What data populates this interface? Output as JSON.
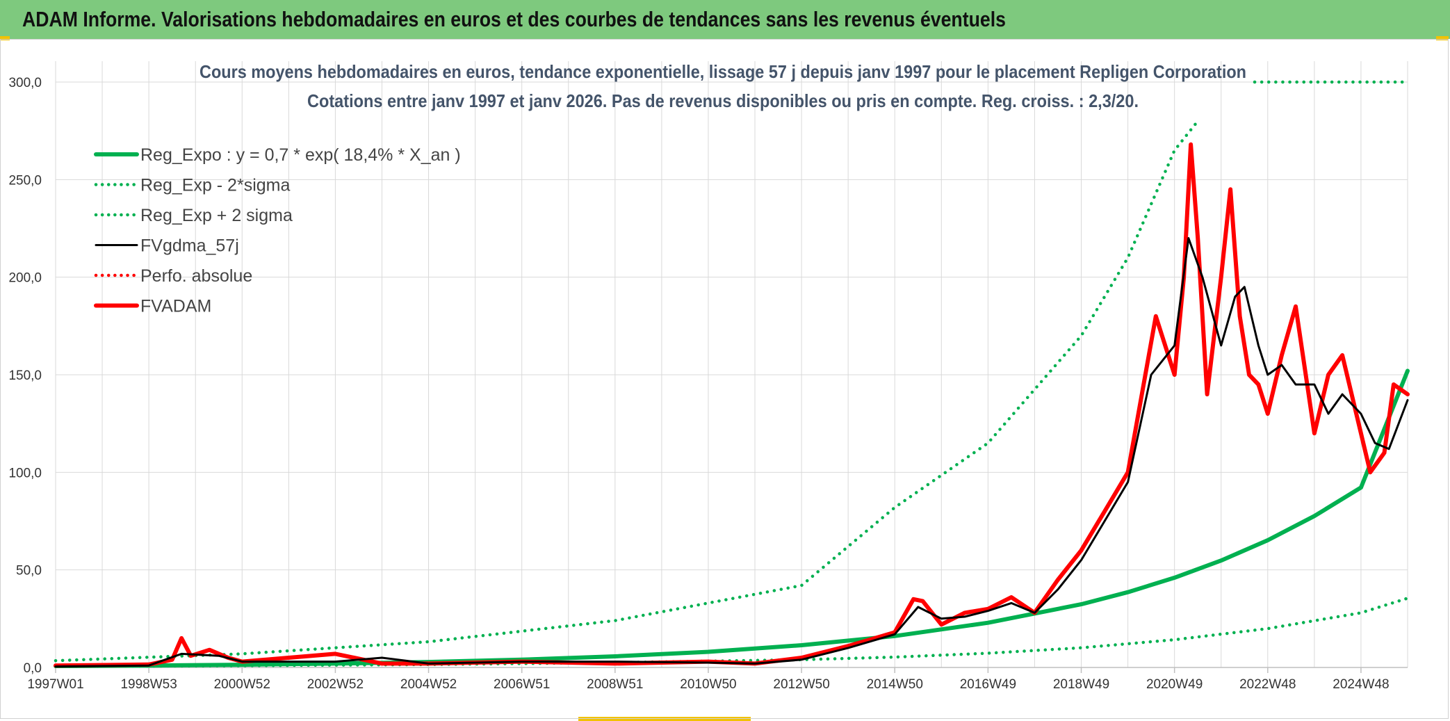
{
  "header": {
    "title": "ADAM Informe. Valorisations hebdomadaires en euros et des courbes de tendances sans les revenus éventuels"
  },
  "colors": {
    "header_bg": "#7ec97e",
    "accent": "#f2c200",
    "green": "#00b050",
    "red": "#ff0000",
    "black": "#000000",
    "grid": "#d9d9d9"
  },
  "chart_data": {
    "type": "line",
    "title": "Cours moyens hebdomadaires en euros, tendance exponentielle, lissage 57 j depuis janv 1997 pour le placement Repligen Corporation",
    "subtitle": "Cotations entre janv 1997 et janv 2026. Pas de revenus disponibles ou pris en compte. Reg. croiss. : 2,3/20.",
    "xlabel": "",
    "ylabel": "",
    "xlim": [
      1997.0,
      2026.0
    ],
    "ylim": [
      0,
      300
    ],
    "y_ticks": [
      "0,0",
      "50,0",
      "100,0",
      "150,0",
      "200,0",
      "250,0",
      "300,0"
    ],
    "x_ticks": [
      {
        "label": "1997W01",
        "x": 1997.0
      },
      {
        "label": "1998W53",
        "x": 1999.0
      },
      {
        "label": "2000W52",
        "x": 2001.0
      },
      {
        "label": "2002W52",
        "x": 2003.0
      },
      {
        "label": "2004W52",
        "x": 2005.0
      },
      {
        "label": "2006W51",
        "x": 2007.0
      },
      {
        "label": "2008W51",
        "x": 2009.0
      },
      {
        "label": "2010W50",
        "x": 2011.0
      },
      {
        "label": "2012W50",
        "x": 2013.0
      },
      {
        "label": "2014W50",
        "x": 2015.0
      },
      {
        "label": "2016W49",
        "x": 2017.0
      },
      {
        "label": "2018W49",
        "x": 2019.0
      },
      {
        "label": "2020W49",
        "x": 2021.0
      },
      {
        "label": "2022W48",
        "x": 2023.0
      },
      {
        "label": "2024W48",
        "x": 2025.0
      }
    ],
    "legend": [
      {
        "label": "Reg_Expo : y = 0,7 * exp( 18,4% *  X_an )",
        "color": "#00b050",
        "style": "solid-thick"
      },
      {
        "label": "Reg_Exp - 2*sigma",
        "color": "#00b050",
        "style": "dotted"
      },
      {
        "label": "Reg_Exp + 2 sigma",
        "color": "#00b050",
        "style": "dotted"
      },
      {
        "label": "FVgdma_57j",
        "color": "#000000",
        "style": "solid"
      },
      {
        "label": "Perfo. absolue",
        "color": "#ff0000",
        "style": "dotted"
      },
      {
        "label": "FVADAM",
        "color": "#ff0000",
        "style": "solid-thick"
      }
    ],
    "series": [
      {
        "name": "Reg_Expo : y = 0,7 * exp( 18,4% *  X_an )",
        "x": [
          1997,
          1999,
          2001,
          2003,
          2005,
          2007,
          2009,
          2011,
          2013,
          2015,
          2017,
          2019,
          2020,
          2021,
          2022,
          2023,
          2024,
          2025,
          2026
        ],
        "y": [
          0.7,
          1.0,
          1.4,
          2.0,
          2.8,
          4.0,
          5.7,
          8.0,
          11.4,
          16.1,
          22.9,
          32.4,
          38.6,
          46.0,
          54.8,
          65.2,
          77.6,
          92.2,
          152.0
        ]
      },
      {
        "name": "Reg_Exp - 2*sigma",
        "x": [
          1997,
          2001,
          2005,
          2009,
          2013,
          2015,
          2017,
          2019,
          2021,
          2023,
          2025,
          2026
        ],
        "y": [
          0.5,
          0.9,
          1.5,
          2.5,
          4.0,
          5.3,
          7.3,
          10.1,
          14.2,
          19.9,
          28.0,
          35.5
        ]
      },
      {
        "name": "Reg_Exp + 2 sigma",
        "x": [
          1997,
          2001,
          2005,
          2009,
          2013,
          2015,
          2017,
          2019,
          2020,
          2021,
          2021.5
        ],
        "y": [
          3.5,
          7.0,
          13.2,
          24.0,
          42.0,
          82.0,
          115.0,
          170.0,
          210.0,
          265.0,
          280.0
        ],
        "note": "continues beyond 300 (shown at top right)"
      },
      {
        "name": "FVgdma_57j",
        "x": [
          1997,
          1999,
          1999.7,
          2000.5,
          2001,
          2003,
          2004,
          2005,
          2007,
          2009,
          2011,
          2012,
          2013,
          2014,
          2015,
          2015.5,
          2016,
          2016.5,
          2017,
          2017.5,
          2018,
          2018.5,
          2019,
          2019.5,
          2020,
          2020.5,
          2021,
          2021.3,
          2021.6,
          2022,
          2022.3,
          2022.5,
          2022.8,
          2023,
          2023.3,
          2023.6,
          2024,
          2024.3,
          2024.6,
          2025,
          2025.3,
          2025.6,
          2026
        ],
        "y": [
          0.5,
          1.0,
          7.0,
          6.0,
          3.0,
          3.0,
          5.0,
          2.0,
          3.0,
          3.0,
          2.5,
          2.0,
          4.0,
          10.0,
          17.0,
          31.0,
          25.0,
          26.0,
          29.0,
          33.0,
          28.0,
          40.0,
          55.0,
          75.0,
          95.0,
          150.0,
          165.0,
          220.0,
          200.0,
          165.0,
          190.0,
          195.0,
          165.0,
          150.0,
          155.0,
          145.0,
          145.0,
          130.0,
          140.0,
          130.0,
          115.0,
          112.0,
          137.0
        ]
      },
      {
        "name": "Perfo. absolue",
        "x": [],
        "y": []
      },
      {
        "name": "FVADAM",
        "x": [
          1997,
          1999,
          1999.5,
          1999.7,
          1999.9,
          2000.3,
          2000.7,
          2001,
          2003,
          2004,
          2005,
          2007,
          2009,
          2011,
          2012,
          2013,
          2014,
          2015,
          2015.4,
          2015.6,
          2016,
          2016.5,
          2017,
          2017.5,
          2018,
          2018.5,
          2019,
          2019.5,
          2020,
          2020.3,
          2020.6,
          2021,
          2021.2,
          2021.35,
          2021.5,
          2021.7,
          2022,
          2022.2,
          2022.4,
          2022.6,
          2022.8,
          2023,
          2023.3,
          2023.6,
          2024,
          2024.3,
          2024.6,
          2024.9,
          2025.2,
          2025.5,
          2025.7,
          2026
        ],
        "y": [
          1.0,
          1.5,
          4.0,
          15.0,
          6.0,
          9.0,
          5.0,
          3.0,
          7.0,
          2.0,
          2.0,
          3.0,
          2.0,
          3.0,
          2.0,
          5.0,
          11.0,
          18.0,
          35.0,
          34.0,
          22.0,
          28.0,
          30.0,
          36.0,
          28.0,
          45.0,
          60.0,
          80.0,
          100.0,
          140.0,
          180.0,
          150.0,
          200.0,
          268.0,
          220.0,
          140.0,
          200.0,
          245.0,
          180.0,
          150.0,
          145.0,
          130.0,
          160.0,
          185.0,
          120.0,
          150.0,
          160.0,
          130.0,
          100.0,
          110.0,
          145.0,
          140.0
        ]
      }
    ]
  }
}
